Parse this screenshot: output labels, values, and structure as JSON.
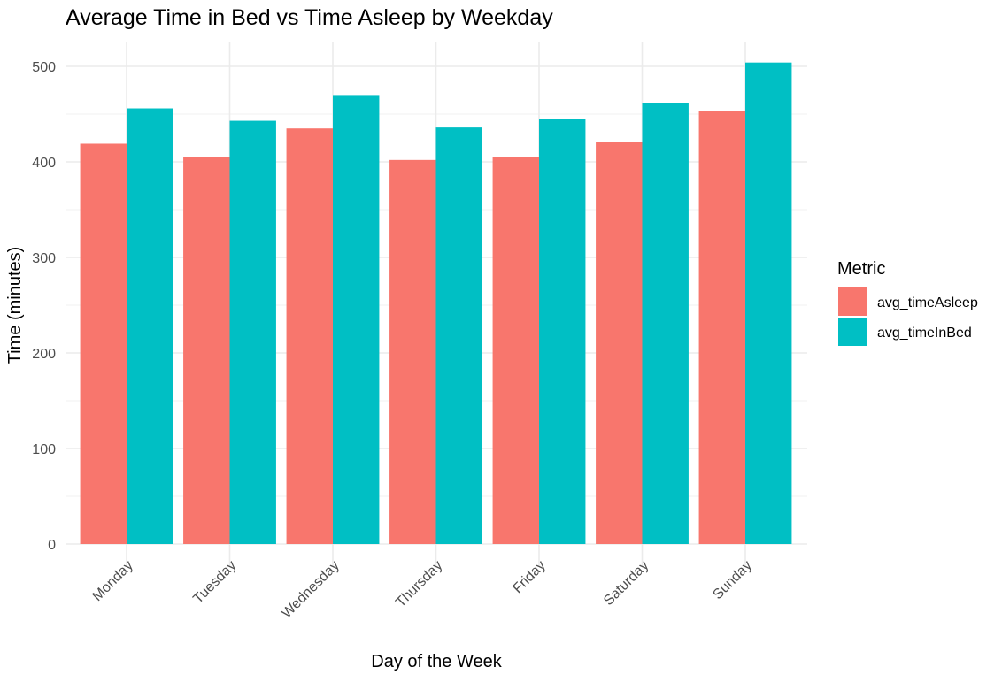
{
  "chart_data": {
    "type": "bar",
    "title": "Average Time in Bed vs Time Asleep by Weekday",
    "xlabel": "Day of the Week",
    "ylabel": "Time (minutes)",
    "categories": [
      "Monday",
      "Tuesday",
      "Wednesday",
      "Thursday",
      "Friday",
      "Saturday",
      "Sunday"
    ],
    "series": [
      {
        "name": "avg_timeAsleep",
        "color": "#F8766D",
        "values": [
          419,
          405,
          435,
          402,
          405,
          421,
          453
        ]
      },
      {
        "name": "avg_timeInBed",
        "color": "#00BFC4",
        "values": [
          456,
          443,
          470,
          436,
          445,
          462,
          504
        ]
      }
    ],
    "ylim": [
      0,
      500
    ],
    "yticks": [
      0,
      100,
      200,
      300,
      400,
      500
    ],
    "grid": true,
    "legend": {
      "title": "Metric",
      "position": "right"
    }
  }
}
